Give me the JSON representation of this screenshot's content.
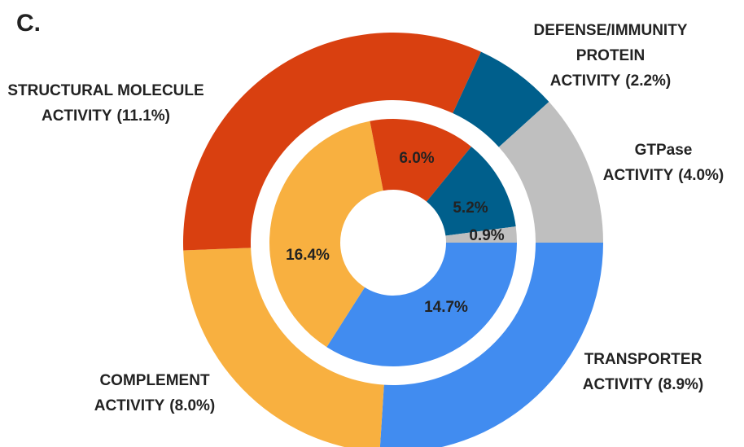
{
  "chart_data": {
    "type": "donut",
    "title": "C.",
    "colors": [
      "#418cf0",
      "#f8b040",
      "#d94010",
      "#005f8c",
      "#bfbfbf"
    ],
    "series": [
      {
        "categories": [
          [
            "TRANSPORTER",
            "ACTIVITY"
          ],
          [
            "COMPLEMENT",
            "ACTIVITY"
          ],
          [
            "STRUCTURAL MOLECULE",
            "ACTIVITY"
          ],
          [
            "DEFENSE/IMMUNITY",
            "PROTEIN",
            "ACTIVITY"
          ],
          [
            "GTPase",
            "ACTIVITY"
          ]
        ],
        "values": [
          8.9,
          8.0,
          11.1,
          2.2,
          4.0
        ],
        "value_labels": [
          "(8.9%)",
          "(8.0%)",
          "(11.1%)",
          "(2.2%)",
          "(4.0%)"
        ]
      },
      {
        "values": [
          14.7,
          16.4,
          6.0,
          5.2,
          0.9
        ],
        "value_labels": [
          "14.7%",
          "16.4%",
          "6.0%",
          "5.2%",
          "0.9%"
        ]
      }
    ]
  }
}
